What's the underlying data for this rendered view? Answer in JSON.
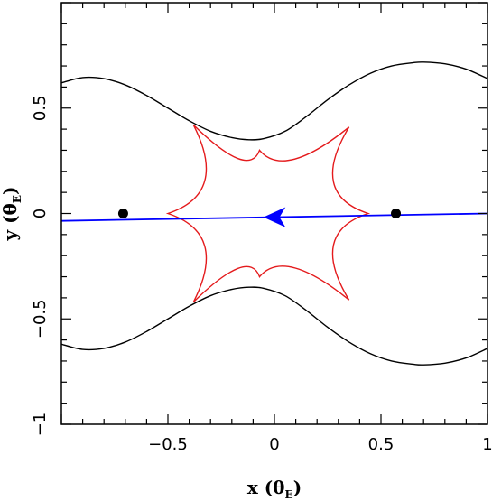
{
  "chart_data": {
    "type": "line",
    "xlim": [
      -1,
      1
    ],
    "ylim": [
      -1,
      1
    ],
    "x_ticks": [
      -0.5,
      0,
      0.5,
      1
    ],
    "x_tick_labels": [
      "−0.5",
      "0",
      "0.5",
      "1"
    ],
    "y_ticks": [
      -1,
      -0.5,
      0,
      0.5
    ],
    "y_tick_labels": [
      "−1",
      "−0.5",
      "0",
      "0.5"
    ],
    "xlabel": {
      "main": "x (θ",
      "sub": "E",
      "close": ")"
    },
    "ylabel": {
      "main": "y (θ",
      "sub": "E",
      "close": ")"
    },
    "critical_curve": {
      "color": "#000000",
      "upper": [
        [
          -1.0,
          0.62
        ],
        [
          -0.9,
          0.645
        ],
        [
          -0.8,
          0.64
        ],
        [
          -0.7,
          0.61
        ],
        [
          -0.6,
          0.56
        ],
        [
          -0.5,
          0.5
        ],
        [
          -0.4,
          0.44
        ],
        [
          -0.3,
          0.39
        ],
        [
          -0.2,
          0.36
        ],
        [
          -0.12,
          0.35
        ],
        [
          -0.05,
          0.355
        ],
        [
          0.05,
          0.39
        ],
        [
          0.15,
          0.46
        ],
        [
          0.25,
          0.54
        ],
        [
          0.35,
          0.61
        ],
        [
          0.45,
          0.665
        ],
        [
          0.55,
          0.7
        ],
        [
          0.65,
          0.715
        ],
        [
          0.7,
          0.718
        ],
        [
          0.8,
          0.71
        ],
        [
          0.9,
          0.685
        ],
        [
          1.0,
          0.64
        ]
      ],
      "lower": [
        [
          -1.0,
          -0.62
        ],
        [
          -0.9,
          -0.645
        ],
        [
          -0.8,
          -0.64
        ],
        [
          -0.7,
          -0.61
        ],
        [
          -0.6,
          -0.56
        ],
        [
          -0.5,
          -0.5
        ],
        [
          -0.4,
          -0.44
        ],
        [
          -0.3,
          -0.39
        ],
        [
          -0.2,
          -0.36
        ],
        [
          -0.12,
          -0.35
        ],
        [
          -0.05,
          -0.355
        ],
        [
          0.05,
          -0.39
        ],
        [
          0.15,
          -0.46
        ],
        [
          0.25,
          -0.54
        ],
        [
          0.35,
          -0.61
        ],
        [
          0.45,
          -0.665
        ],
        [
          0.55,
          -0.7
        ],
        [
          0.65,
          -0.715
        ],
        [
          0.7,
          -0.718
        ],
        [
          0.8,
          -0.71
        ],
        [
          0.9,
          -0.685
        ],
        [
          1.0,
          -0.64
        ]
      ]
    },
    "caustic": {
      "color": "#e41a1c",
      "cusps": [
        [
          -0.5,
          0
        ],
        [
          -0.38,
          0.42
        ],
        [
          -0.07,
          0.3
        ],
        [
          0.35,
          0.41
        ],
        [
          0.44,
          0
        ],
        [
          0.35,
          -0.41
        ],
        [
          -0.07,
          -0.3
        ],
        [
          -0.38,
          -0.42
        ]
      ]
    },
    "source_trajectory": {
      "color": "#0000ff",
      "start": [
        1.0,
        0.0
      ],
      "end": [
        -1.0,
        -0.035
      ],
      "arrow_at": [
        0.0,
        -0.0175
      ],
      "direction": "left"
    },
    "lens_positions": [
      [
        -0.71,
        0.0
      ],
      [
        0.57,
        0.0
      ]
    ]
  }
}
